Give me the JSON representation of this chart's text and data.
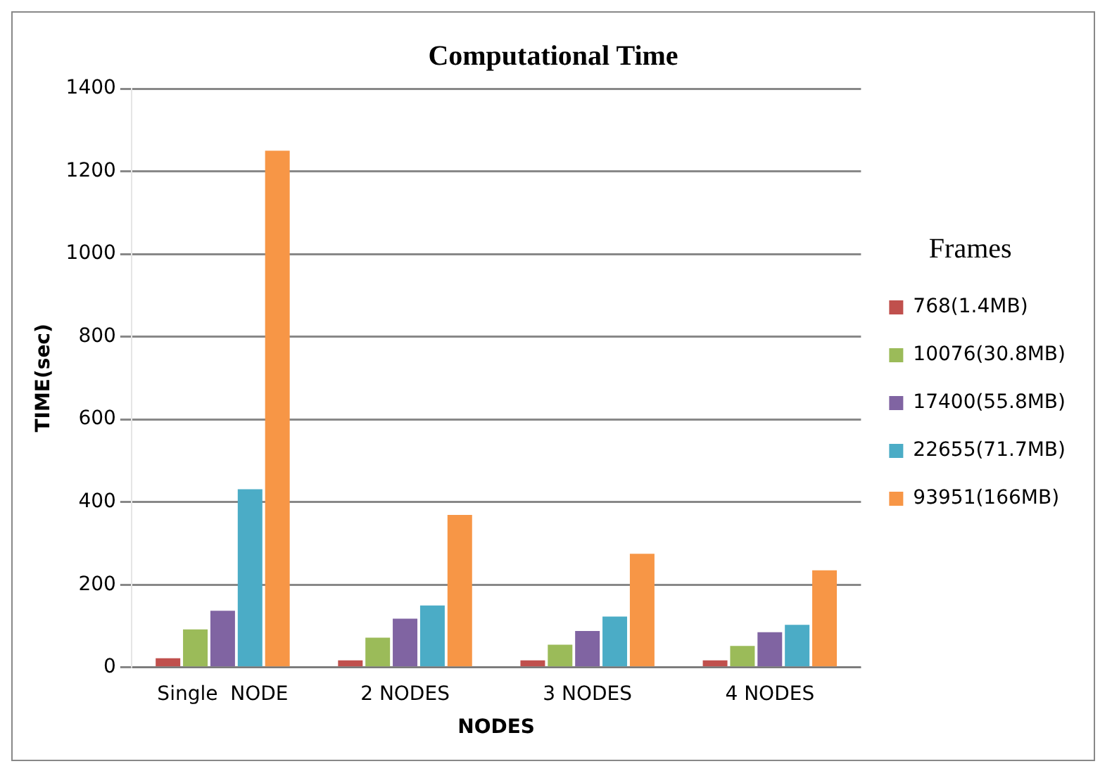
{
  "chart_data": {
    "type": "bar",
    "title": "Computational Time",
    "xlabel": "NODES",
    "ylabel": "TIME(sec)",
    "legend_title": "Frames",
    "legend": "right",
    "categories": [
      "Single  NODE",
      "2 NODES",
      "3 NODES",
      "4 NODES"
    ],
    "series": [
      {
        "name": "768(1.4MB)",
        "color": "#c0504d",
        "values": [
          22,
          17,
          17,
          17
        ]
      },
      {
        "name": "10076(30.8MB)",
        "color": "#9bbb59",
        "values": [
          92,
          72,
          55,
          52
        ]
      },
      {
        "name": "17400(55.8MB)",
        "color": "#8064a2",
        "values": [
          137,
          118,
          88,
          85
        ]
      },
      {
        "name": "22655(71.7MB)",
        "color": "#4bacc6",
        "values": [
          431,
          150,
          123,
          103
        ]
      },
      {
        "name": "93951(166MB)",
        "color": "#f79646",
        "values": [
          1250,
          369,
          275,
          235
        ]
      }
    ],
    "ylim": [
      0,
      1400
    ],
    "yticks": [
      0,
      200,
      400,
      600,
      800,
      1000,
      1200,
      1400
    ],
    "grid": "y"
  }
}
